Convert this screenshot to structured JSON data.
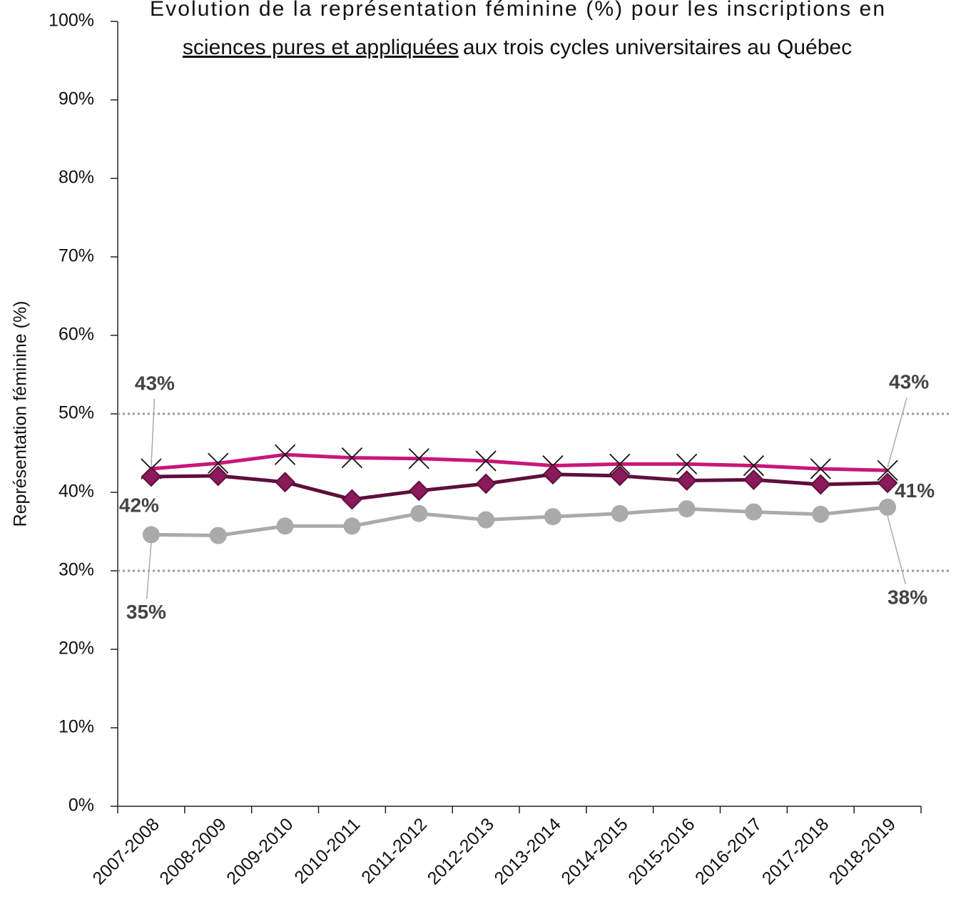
{
  "chart_data": {
    "type": "line",
    "title": {
      "line1": "Évolution de la représentation féminine (%) pour les inscriptions  en",
      "line2_underlined": "sciences pures et appliquées",
      "line2_rest": "aux trois cycles universitaires au Québec"
    },
    "y_label": "Représentation féminine (%)",
    "categories": [
      "2007-2008",
      "2008-2009",
      "2009-2010",
      "2010-2011",
      "2011-2012",
      "2012-2013",
      "2013-2014",
      "2014-2015",
      "2015-2016",
      "2016-2017",
      "2017-2018",
      "2018-2019"
    ],
    "series": [
      {
        "color": "#c8177a",
        "marker": "x",
        "marker_color": "#111111",
        "values": [
          43.0,
          43.7,
          44.8,
          44.4,
          44.3,
          44.0,
          43.4,
          43.6,
          43.6,
          43.4,
          43.0,
          42.8
        ],
        "value_labels": [
          "43%",
          null,
          null,
          null,
          null,
          null,
          null,
          null,
          null,
          null,
          null,
          "43%"
        ]
      },
      {
        "color": "#5e0f3b",
        "marker": "diamond",
        "marker_color": "#8b1a5a",
        "values": [
          42.0,
          42.1,
          41.3,
          39.1,
          40.2,
          41.1,
          42.3,
          42.1,
          41.5,
          41.6,
          41.0,
          41.2
        ],
        "value_labels": [
          "42%",
          null,
          null,
          null,
          null,
          null,
          null,
          null,
          null,
          null,
          null,
          "41%"
        ]
      },
      {
        "color": "#aaaaaa",
        "marker": "circle",
        "marker_color": "#aaaaaa",
        "values": [
          34.6,
          34.5,
          35.7,
          35.7,
          37.3,
          36.5,
          36.9,
          37.3,
          37.9,
          37.5,
          37.2,
          38.1
        ],
        "value_labels": [
          "35%",
          null,
          null,
          null,
          null,
          null,
          null,
          null,
          null,
          null,
          null,
          "38%"
        ]
      }
    ],
    "reference_lines": [
      50,
      30
    ],
    "ylim": [
      0,
      100
    ],
    "yticks": [
      {
        "value": 0,
        "label": "0%"
      },
      {
        "value": 10,
        "label": "10%"
      },
      {
        "value": 20,
        "label": "20%"
      },
      {
        "value": 30,
        "label": "30%"
      },
      {
        "value": 40,
        "label": "40%"
      },
      {
        "value": 50,
        "label": "50%"
      },
      {
        "value": 60,
        "label": "60%"
      },
      {
        "value": 70,
        "label": "70%"
      },
      {
        "value": 80,
        "label": "80%"
      },
      {
        "value": 90,
        "label": "90%"
      },
      {
        "value": 100,
        "label": "100%"
      }
    ]
  }
}
